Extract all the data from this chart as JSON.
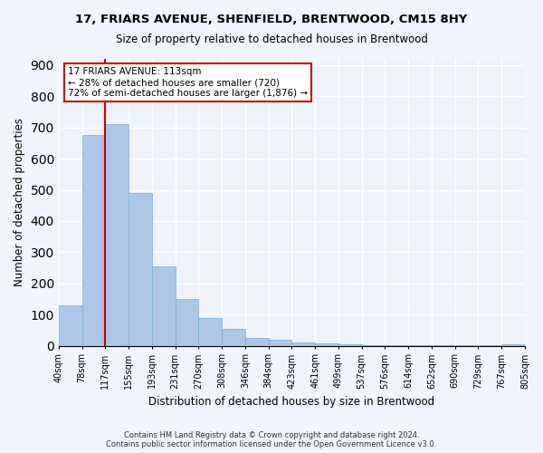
{
  "title1": "17, FRIARS AVENUE, SHENFIELD, BRENTWOOD, CM15 8HY",
  "title2": "Size of property relative to detached houses in Brentwood",
  "xlabel": "Distribution of detached houses by size in Brentwood",
  "ylabel": "Number of detached properties",
  "footnote1": "Contains HM Land Registry data © Crown copyright and database right 2024.",
  "footnote2": "Contains public sector information licensed under the Open Government Licence v3.0.",
  "bin_labels": [
    "40sqm",
    "78sqm",
    "117sqm",
    "155sqm",
    "193sqm",
    "231sqm",
    "270sqm",
    "308sqm",
    "346sqm",
    "384sqm",
    "423sqm",
    "461sqm",
    "499sqm",
    "537sqm",
    "576sqm",
    "614sqm",
    "652sqm",
    "690sqm",
    "729sqm",
    "767sqm",
    "805sqm"
  ],
  "bar_values": [
    130,
    675,
    710,
    490,
    255,
    150,
    90,
    55,
    25,
    20,
    10,
    8,
    5,
    3,
    2,
    1,
    1,
    1,
    1,
    5
  ],
  "bar_color": "#aec6e8",
  "bar_edge_color": "#7aafd4",
  "background_color": "#eef2f9",
  "fig_background_color": "#f0f4fc",
  "grid_color": "#ffffff",
  "red_line_x": 1.5,
  "annotation_text_line1": "17 FRIARS AVENUE: 113sqm",
  "annotation_text_line2": "← 28% of detached houses are smaller (720)",
  "annotation_text_line3": "72% of semi-detached houses are larger (1,876) →",
  "annotation_box_color": "#cc0000",
  "ylim": [
    0,
    920
  ],
  "yticks": [
    0,
    100,
    200,
    300,
    400,
    500,
    600,
    700,
    800,
    900
  ]
}
